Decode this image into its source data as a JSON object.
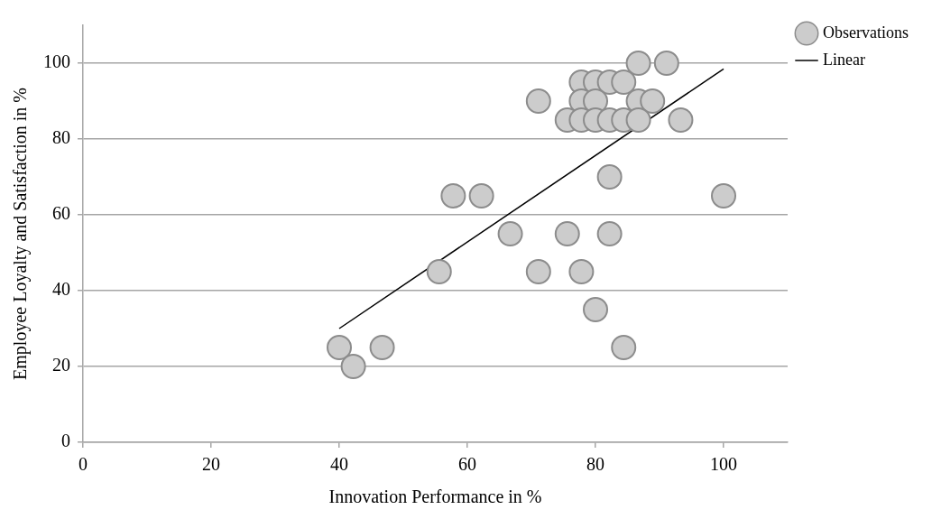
{
  "chart_data": {
    "type": "scatter",
    "xlabel": "Innovation Performance in %",
    "ylabel": "Employee Loyalty and Satisfaction in %",
    "xlim": [
      0,
      110
    ],
    "ylim": [
      0,
      110
    ],
    "xticks": [
      0,
      20,
      40,
      60,
      80,
      100
    ],
    "yticks": [
      0,
      20,
      40,
      60,
      80,
      100
    ],
    "grid": "y",
    "legend": "top right",
    "marker": "circle",
    "series": [
      {
        "name": "Observations",
        "color": "#cccccc",
        "x": [
          86.7,
          91.1,
          77.8,
          80,
          82.2,
          84.4,
          71.1,
          77.8,
          80,
          86.7,
          88.9,
          75.6,
          77.8,
          80,
          82.2,
          84.4,
          86.7,
          93.3,
          82.2,
          57.8,
          62.2,
          100,
          66.7,
          75.6,
          82.2,
          55.6,
          71.1,
          77.8,
          80,
          40,
          46.7,
          84.4,
          42.2
        ],
        "values": [
          100,
          100,
          95,
          95,
          95,
          95,
          90,
          90,
          90,
          90,
          90,
          85,
          85,
          85,
          85,
          85,
          85,
          85,
          70,
          65,
          65,
          65,
          55,
          55,
          55,
          45,
          45,
          45,
          35,
          25,
          25,
          25,
          20
        ]
      },
      {
        "name": "Linear",
        "type": "line",
        "color": "#000000",
        "x": [
          40,
          100
        ],
        "values": [
          30,
          98.5
        ],
        "marker": "none"
      }
    ]
  }
}
